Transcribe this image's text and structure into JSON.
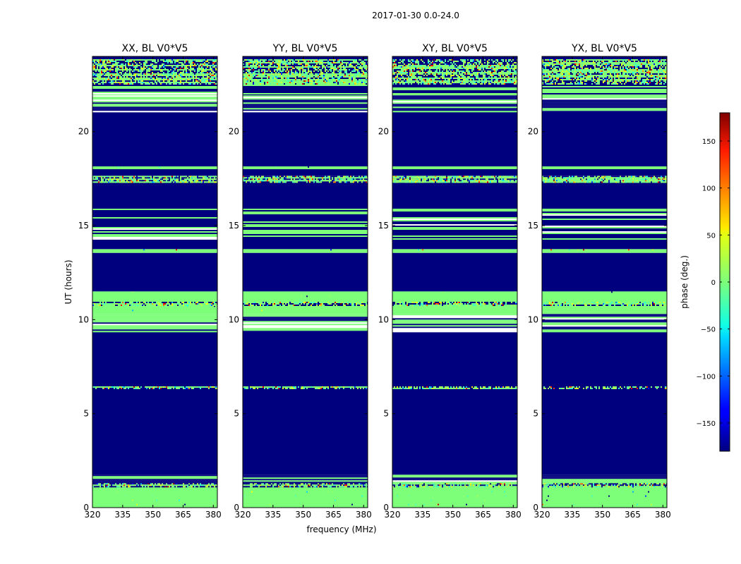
{
  "chart_data": {
    "type": "heatmap",
    "suptitle": "2017-01-30 0.0-24.0",
    "xlabel": "frequency (MHz)",
    "ylabel": "UT (hours)",
    "xlim": [
      320,
      382
    ],
    "ylim": [
      0,
      24
    ],
    "xticks": [
      320,
      335,
      350,
      365,
      380
    ],
    "yticks": [
      0,
      5,
      10,
      15,
      20
    ],
    "panels": [
      {
        "title": "XX, BL V0*V5"
      },
      {
        "title": "YY, BL V0*V5"
      },
      {
        "title": "XY, BL V0*V5"
      },
      {
        "title": "YX, BL V0*V5"
      }
    ],
    "colorbar": {
      "label": "phase (deg.)",
      "range": [
        -180,
        180
      ],
      "ticks": [
        150,
        100,
        50,
        0,
        -50,
        -100,
        -150
      ],
      "tick_labels": [
        "150",
        "100",
        "50",
        "0",
        "−50",
        "−100",
        "−150"
      ],
      "colormap": "jet"
    },
    "bands": [
      {
        "y0": 0.0,
        "y1": 1.1,
        "fill": "phase0",
        "speckle": 0.25
      },
      {
        "y0": 1.1,
        "y1": 1.3,
        "fill": "noisy"
      },
      {
        "y0": 1.3,
        "y1": 1.75,
        "fill": "lines"
      },
      {
        "y0": 1.75,
        "y1": 6.3,
        "fill": "masked"
      },
      {
        "y0": 6.3,
        "y1": 6.45,
        "fill": "noisy"
      },
      {
        "y0": 6.45,
        "y1": 9.4,
        "fill": "masked"
      },
      {
        "y0": 9.4,
        "y1": 10.3,
        "fill": "lines"
      },
      {
        "y0": 10.3,
        "y1": 10.75,
        "fill": "phase0"
      },
      {
        "y0": 10.75,
        "y1": 10.95,
        "fill": "noisy"
      },
      {
        "y0": 10.95,
        "y1": 11.5,
        "fill": "phase0"
      },
      {
        "y0": 11.5,
        "y1": 13.55,
        "fill": "masked"
      },
      {
        "y0": 13.55,
        "y1": 13.75,
        "fill": "phase0",
        "speckle": 0.35
      },
      {
        "y0": 13.75,
        "y1": 14.3,
        "fill": "masked"
      },
      {
        "y0": 14.3,
        "y1": 15.9,
        "fill": "lines"
      },
      {
        "y0": 15.9,
        "y1": 17.3,
        "fill": "masked"
      },
      {
        "y0": 17.3,
        "y1": 17.65,
        "fill": "noisy"
      },
      {
        "y0": 17.65,
        "y1": 18.0,
        "fill": "masked"
      },
      {
        "y0": 18.0,
        "y1": 18.15,
        "fill": "phase0"
      },
      {
        "y0": 18.15,
        "y1": 21.05,
        "fill": "masked"
      },
      {
        "y0": 21.05,
        "y1": 22.0,
        "fill": "lines"
      },
      {
        "y0": 22.0,
        "y1": 22.5,
        "fill": "lines"
      },
      {
        "y0": 22.5,
        "y1": 23.85,
        "fill": "noisy"
      },
      {
        "y0": 23.85,
        "y1": 24.0,
        "fill": "masked"
      }
    ]
  }
}
